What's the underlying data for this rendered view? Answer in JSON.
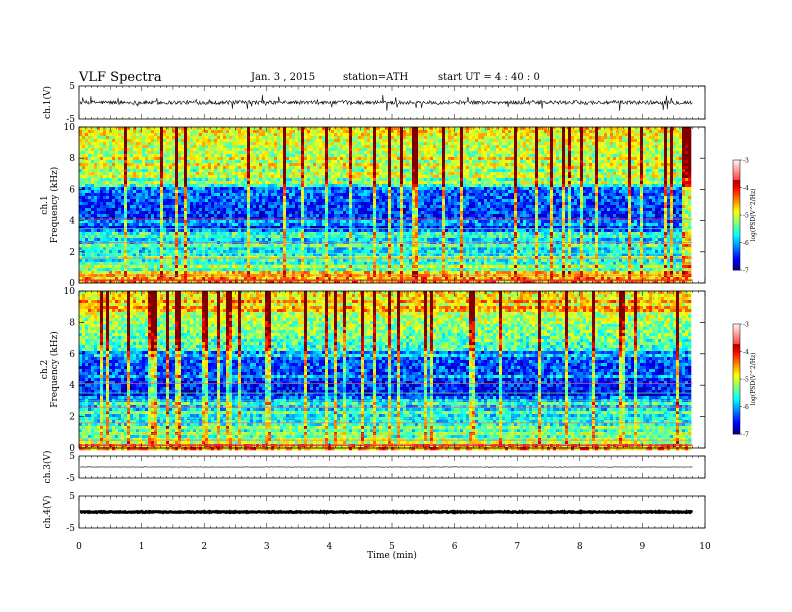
{
  "header": {
    "title": "VLF  Spectra",
    "date": "Jan.  3   , 2015",
    "station": "station=ATH",
    "start": "start  UT  =   4  : 40 : 0"
  },
  "chart_data": {
    "type": "heatmap",
    "xlabel": "Time  (min)",
    "x_ticks": [
      "0",
      "1",
      "2",
      "3",
      "4",
      "5",
      "6",
      "7",
      "8",
      "9",
      "10"
    ],
    "xlim": [
      0,
      10
    ],
    "data_end_min": 9.8,
    "panels": [
      {
        "id": "ch1-waveform",
        "type": "line",
        "ylabel": "ch.1(V)",
        "ylim": [
          -5,
          5
        ],
        "y_ticks": [
          "5",
          "-5"
        ],
        "baseline": 0,
        "noise_amplitude": 0.6,
        "spike_amplitude": 2.5
      },
      {
        "id": "ch1-spectrogram",
        "type": "heatmap",
        "ylabel_line1": "ch.1",
        "ylabel_line2": "Frequency  (kHz)",
        "ylim": [
          0,
          10
        ],
        "y_ticks": [
          "0",
          "2",
          "4",
          "6",
          "8",
          "10"
        ],
        "colorbar": {
          "label": "log(PSD(V^2/Hz)",
          "range": [
            -7,
            -3
          ],
          "ticks": [
            "-3",
            "-4",
            "-5",
            "-6",
            "-7"
          ]
        }
      },
      {
        "id": "ch2-spectrogram",
        "type": "heatmap",
        "ylabel_line1": "ch.2",
        "ylabel_line2": "Frequency  (kHz)",
        "ylim": [
          0,
          10
        ],
        "y_ticks": [
          "0",
          "2",
          "4",
          "6",
          "8",
          "10"
        ],
        "colorbar": {
          "label": "log(PSD(V^2/Hz)",
          "range": [
            -7,
            -3
          ],
          "ticks": [
            "-3",
            "-4",
            "-5",
            "-6",
            "-7"
          ]
        }
      },
      {
        "id": "ch3-waveform",
        "type": "line",
        "ylabel": "ch.3(V)",
        "ylim": [
          -5,
          5
        ],
        "y_ticks": [
          "5",
          "-5"
        ],
        "baseline": 0,
        "noise_amplitude": 0.12,
        "spike_amplitude": 0
      },
      {
        "id": "ch4-waveform",
        "type": "line",
        "ylabel": "ch.4(V)",
        "ylim": [
          -5,
          5
        ],
        "y_ticks": [
          "5",
          "-5"
        ],
        "baseline": 0,
        "noise_amplitude": 0.15,
        "spike_amplitude": 0
      }
    ]
  }
}
